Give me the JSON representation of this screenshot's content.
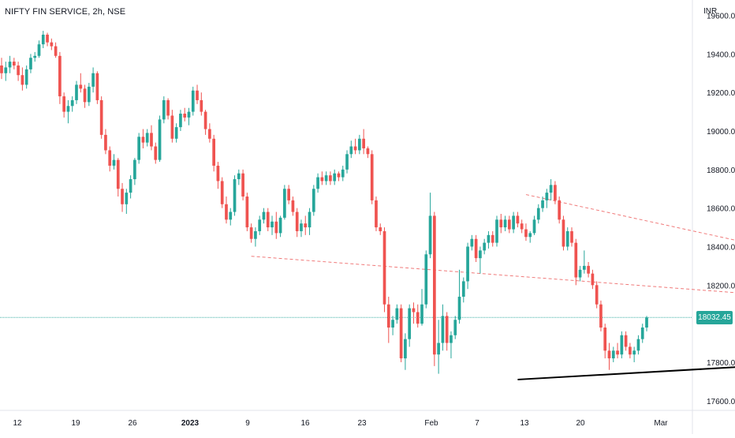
{
  "chart_data": {
    "type": "candlestick",
    "title": "NIFTY FIN SERVICE, 2h, NSE",
    "currency": "INR",
    "y_range": [
      17550,
      19680
    ],
    "y_ticks": [
      "19600.00",
      "19400.00",
      "19200.00",
      "19000.00",
      "18800.00",
      "18600.00",
      "18400.00",
      "18200.00",
      "17800.00",
      "17600.00"
    ],
    "y_tick_values": [
      19600,
      19400,
      19200,
      19000,
      18800,
      18600,
      18400,
      18200,
      17800,
      17600
    ],
    "x_ticks": [
      "12",
      "19",
      "26",
      "2023",
      "9",
      "16",
      "23",
      "Feb",
      "7",
      "13",
      "20",
      "Mar"
    ],
    "last_price": "18032.45",
    "last_price_value": 18032.45,
    "up_color": "#26a69a",
    "down_color": "#ef5350",
    "grid": false,
    "candles": [
      [
        19340,
        19380,
        19270,
        19300
      ],
      [
        19300,
        19360,
        19260,
        19330
      ],
      [
        19330,
        19390,
        19300,
        19360
      ],
      [
        19360,
        19380,
        19320,
        19340
      ],
      [
        19340,
        19360,
        19260,
        19290
      ],
      [
        19290,
        19330,
        19210,
        19240
      ],
      [
        19240,
        19340,
        19220,
        19320
      ],
      [
        19320,
        19400,
        19300,
        19380
      ],
      [
        19380,
        19410,
        19360,
        19390
      ],
      [
        19390,
        19470,
        19380,
        19450
      ],
      [
        19450,
        19520,
        19430,
        19500
      ],
      [
        19500,
        19510,
        19440,
        19460
      ],
      [
        19460,
        19480,
        19420,
        19440
      ],
      [
        19440,
        19460,
        19380,
        19390
      ],
      [
        19390,
        19410,
        19140,
        19180
      ],
      [
        19180,
        19200,
        19070,
        19100
      ],
      [
        19100,
        19160,
        19040,
        19130
      ],
      [
        19130,
        19180,
        19100,
        19160
      ],
      [
        19160,
        19260,
        19140,
        19240
      ],
      [
        19240,
        19300,
        19200,
        19220
      ],
      [
        19220,
        19240,
        19120,
        19150
      ],
      [
        19150,
        19250,
        19130,
        19230
      ],
      [
        19230,
        19330,
        19200,
        19300
      ],
      [
        19300,
        19310,
        19140,
        19160
      ],
      [
        19160,
        19180,
        18960,
        18980
      ],
      [
        18980,
        19010,
        18880,
        18900
      ],
      [
        18900,
        18920,
        18790,
        18820
      ],
      [
        18820,
        18880,
        18800,
        18850
      ],
      [
        18850,
        18860,
        18660,
        18700
      ],
      [
        18700,
        18730,
        18580,
        18620
      ],
      [
        18620,
        18700,
        18570,
        18680
      ],
      [
        18680,
        18770,
        18650,
        18750
      ],
      [
        18750,
        18860,
        18720,
        18850
      ],
      [
        18850,
        18990,
        18830,
        18970
      ],
      [
        18970,
        19010,
        18910,
        18940
      ],
      [
        18940,
        19010,
        18920,
        18990
      ],
      [
        18990,
        19030,
        18900,
        18920
      ],
      [
        18920,
        18940,
        18830,
        18850
      ],
      [
        18850,
        19080,
        18840,
        19060
      ],
      [
        19060,
        19180,
        19040,
        19160
      ],
      [
        19160,
        19170,
        19060,
        19080
      ],
      [
        19080,
        19110,
        18940,
        18960
      ],
      [
        18960,
        19040,
        18940,
        19020
      ],
      [
        19020,
        19110,
        19000,
        19090
      ],
      [
        19090,
        19120,
        19050,
        19070
      ],
      [
        19070,
        19120,
        19030,
        19100
      ],
      [
        19100,
        19230,
        19080,
        19210
      ],
      [
        19210,
        19240,
        19140,
        19160
      ],
      [
        19160,
        19200,
        19080,
        19100
      ],
      [
        19100,
        19110,
        18980,
        19010
      ],
      [
        19010,
        19040,
        18940,
        18960
      ],
      [
        18960,
        18980,
        18790,
        18820
      ],
      [
        18820,
        18840,
        18700,
        18740
      ],
      [
        18740,
        18760,
        18600,
        18620
      ],
      [
        18620,
        18660,
        18520,
        18540
      ],
      [
        18540,
        18600,
        18510,
        18580
      ],
      [
        18580,
        18770,
        18560,
        18750
      ],
      [
        18750,
        18800,
        18720,
        18780
      ],
      [
        18780,
        18800,
        18640,
        18660
      ],
      [
        18660,
        18680,
        18480,
        18500
      ],
      [
        18500,
        18520,
        18420,
        18440
      ],
      [
        18440,
        18500,
        18400,
        18480
      ],
      [
        18480,
        18560,
        18460,
        18540
      ],
      [
        18540,
        18600,
        18520,
        18580
      ],
      [
        18580,
        18600,
        18480,
        18500
      ],
      [
        18500,
        18560,
        18460,
        18530
      ],
      [
        18530,
        18580,
        18440,
        18470
      ],
      [
        18470,
        18560,
        18450,
        18550
      ],
      [
        18550,
        18720,
        18540,
        18700
      ],
      [
        18700,
        18720,
        18620,
        18640
      ],
      [
        18640,
        18660,
        18560,
        18580
      ],
      [
        18580,
        18600,
        18450,
        18480
      ],
      [
        18480,
        18540,
        18450,
        18520
      ],
      [
        18520,
        18560,
        18460,
        18500
      ],
      [
        18500,
        18600,
        18460,
        18580
      ],
      [
        18580,
        18720,
        18560,
        18700
      ],
      [
        18700,
        18780,
        18680,
        18760
      ],
      [
        18760,
        18790,
        18720,
        18740
      ],
      [
        18740,
        18790,
        18720,
        18770
      ],
      [
        18770,
        18790,
        18720,
        18740
      ],
      [
        18740,
        18800,
        18720,
        18780
      ],
      [
        18780,
        18790,
        18740,
        18760
      ],
      [
        18760,
        18820,
        18740,
        18800
      ],
      [
        18800,
        18900,
        18780,
        18880
      ],
      [
        18880,
        18950,
        18860,
        18920
      ],
      [
        18920,
        18960,
        18880,
        18900
      ],
      [
        18900,
        18980,
        18880,
        18960
      ],
      [
        18960,
        19010,
        18880,
        18910
      ],
      [
        18910,
        18920,
        18860,
        18880
      ],
      [
        18880,
        18900,
        18620,
        18640
      ],
      [
        18640,
        18660,
        18480,
        18500
      ],
      [
        18500,
        18520,
        18460,
        18480
      ],
      [
        18480,
        18500,
        18060,
        18100
      ],
      [
        18100,
        18140,
        17900,
        17980
      ],
      [
        17980,
        18040,
        17940,
        18020
      ],
      [
        18020,
        18100,
        18000,
        18080
      ],
      [
        18080,
        18100,
        17800,
        17820
      ],
      [
        17820,
        17950,
        17760,
        17920
      ],
      [
        17920,
        18100,
        17880,
        18080
      ],
      [
        18080,
        18110,
        18000,
        18060
      ],
      [
        18060,
        18100,
        17980,
        18000
      ],
      [
        18000,
        18180,
        17990,
        18100
      ],
      [
        18100,
        18380,
        18080,
        18360
      ],
      [
        18360,
        18680,
        18340,
        18560
      ],
      [
        18560,
        18580,
        17780,
        17840
      ],
      [
        17840,
        18020,
        17740,
        17900
      ],
      [
        17900,
        18100,
        17860,
        18040
      ],
      [
        18040,
        18060,
        17860,
        17900
      ],
      [
        17900,
        17960,
        17820,
        17940
      ],
      [
        17940,
        18040,
        17920,
        18020
      ],
      [
        18020,
        18280,
        18000,
        18140
      ],
      [
        18140,
        18240,
        18110,
        18220
      ],
      [
        18220,
        18420,
        18180,
        18400
      ],
      [
        18400,
        18460,
        18380,
        18440
      ],
      [
        18440,
        18460,
        18320,
        18340
      ],
      [
        18340,
        18400,
        18260,
        18380
      ],
      [
        18380,
        18440,
        18360,
        18420
      ],
      [
        18420,
        18480,
        18390,
        18460
      ],
      [
        18460,
        18480,
        18400,
        18420
      ],
      [
        18420,
        18560,
        18400,
        18540
      ],
      [
        18540,
        18570,
        18470,
        18500
      ],
      [
        18500,
        18560,
        18480,
        18540
      ],
      [
        18540,
        18560,
        18470,
        18490
      ],
      [
        18490,
        18580,
        18470,
        18560
      ],
      [
        18560,
        18580,
        18500,
        18520
      ],
      [
        18520,
        18540,
        18470,
        18490
      ],
      [
        18490,
        18520,
        18430,
        18450
      ],
      [
        18450,
        18480,
        18420,
        18470
      ],
      [
        18470,
        18560,
        18460,
        18540
      ],
      [
        18540,
        18620,
        18520,
        18600
      ],
      [
        18600,
        18660,
        18580,
        18640
      ],
      [
        18640,
        18700,
        18600,
        18680
      ],
      [
        18680,
        18750,
        18640,
        18720
      ],
      [
        18720,
        18740,
        18620,
        18640
      ],
      [
        18640,
        18660,
        18520,
        18540
      ],
      [
        18540,
        18560,
        18380,
        18400
      ],
      [
        18400,
        18500,
        18380,
        18480
      ],
      [
        18480,
        18500,
        18400,
        18420
      ],
      [
        18420,
        18440,
        18200,
        18240
      ],
      [
        18240,
        18300,
        18220,
        18280
      ],
      [
        18280,
        18380,
        18260,
        18300
      ],
      [
        18300,
        18320,
        18240,
        18260
      ],
      [
        18260,
        18280,
        18180,
        18200
      ],
      [
        18200,
        18220,
        18080,
        18100
      ],
      [
        18100,
        18120,
        17960,
        17980
      ],
      [
        17980,
        18000,
        17820,
        17860
      ],
      [
        17860,
        17900,
        17760,
        17820
      ],
      [
        17820,
        17880,
        17800,
        17860
      ],
      [
        17860,
        17900,
        17820,
        17840
      ],
      [
        17840,
        17960,
        17820,
        17940
      ],
      [
        17940,
        17960,
        17860,
        17880
      ],
      [
        17880,
        17900,
        17820,
        17840
      ],
      [
        17840,
        17880,
        17800,
        17860
      ],
      [
        17860,
        17940,
        17840,
        17920
      ],
      [
        17920,
        18000,
        17900,
        17980
      ],
      [
        17980,
        18040,
        17960,
        18032.45
      ]
    ],
    "annotations": [
      {
        "type": "trendline",
        "style": "solid",
        "color": "#000000",
        "from": {
          "x": 124,
          "y": 17710
        },
        "to": {
          "x": 177,
          "y": 17775
        }
      },
      {
        "type": "trendline",
        "style": "dashed",
        "color": "#f07a7a",
        "from": {
          "x": 60,
          "y": 18350
        },
        "to": {
          "x": 177,
          "y": 18160
        }
      },
      {
        "type": "trendline",
        "style": "dashed",
        "color": "#f07a7a",
        "from": {
          "x": 126,
          "y": 18670
        },
        "to": {
          "x": 177,
          "y": 18430
        }
      }
    ]
  }
}
